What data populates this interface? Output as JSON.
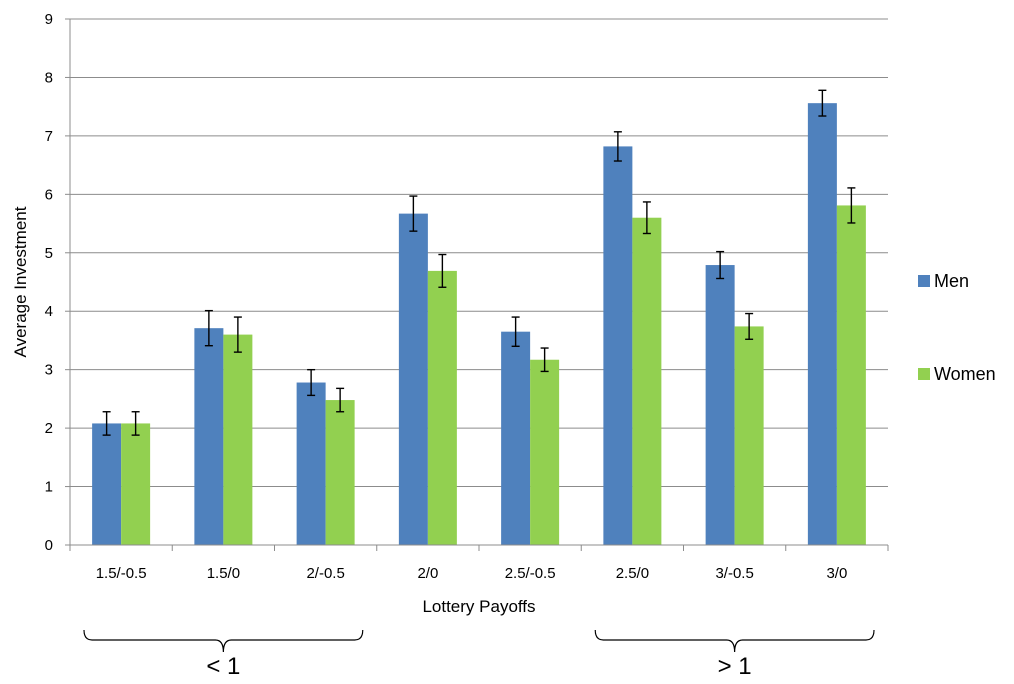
{
  "chart_data": {
    "type": "bar",
    "xlabel": "Lottery Payoffs",
    "ylabel": "Average Investment",
    "ylim": [
      0,
      9
    ],
    "yticks": [
      0,
      1,
      2,
      3,
      4,
      5,
      6,
      7,
      8,
      9
    ],
    "grid": "horizontal",
    "legend_position": "right",
    "categories": [
      "1.5/-0.5",
      "1.5/0",
      "2/-0.5",
      "2/0",
      "2.5/-0.5",
      "2.5/0",
      "3/-0.5",
      "3/0"
    ],
    "series": [
      {
        "name": "Men",
        "color": "#4F81BD",
        "values": [
          2.08,
          3.71,
          2.78,
          5.67,
          3.65,
          6.82,
          4.79,
          7.56
        ],
        "error": [
          0.2,
          0.3,
          0.22,
          0.3,
          0.25,
          0.25,
          0.23,
          0.22
        ]
      },
      {
        "name": "Women",
        "color": "#92D050",
        "values": [
          2.08,
          3.6,
          2.48,
          4.69,
          3.17,
          5.6,
          3.74,
          5.81
        ],
        "error": [
          0.2,
          0.3,
          0.2,
          0.28,
          0.2,
          0.27,
          0.22,
          0.3
        ]
      }
    ],
    "annotations": [
      {
        "label": "< 1",
        "from_category": 0,
        "to_category": 2
      },
      {
        "label": "> 1",
        "from_category": 5,
        "to_category": 7
      }
    ]
  }
}
